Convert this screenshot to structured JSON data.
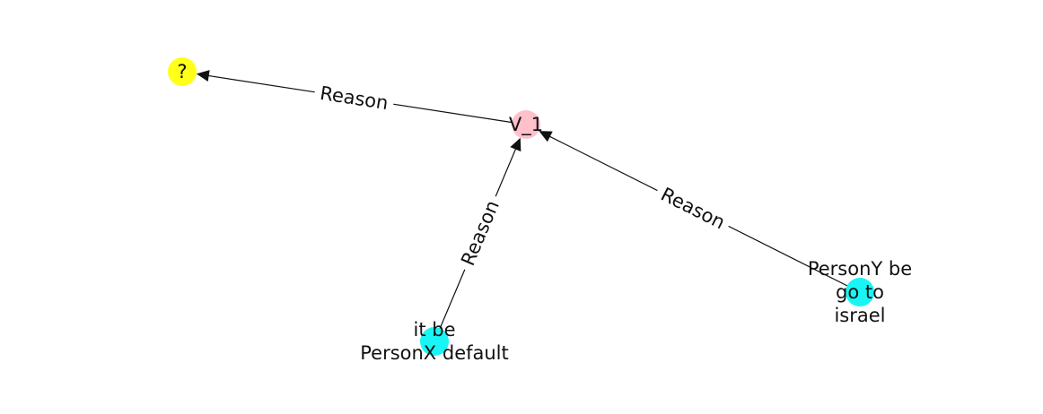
{
  "graph": {
    "nodes": [
      {
        "id": "q",
        "lines": [
          "?"
        ],
        "color": "#ffff1a"
      },
      {
        "id": "v1",
        "lines": [
          "V_1"
        ],
        "color": "#ffc0cb"
      },
      {
        "id": "x",
        "lines": [
          "it be",
          "PersonX default"
        ],
        "color": "#19f5f5"
      },
      {
        "id": "y",
        "lines": [
          "PersonY be",
          "go to",
          "israel"
        ],
        "color": "#19f5f5"
      }
    ],
    "edges": [
      {
        "id": "e1",
        "source": "v1",
        "target": "q",
        "label": "Reason"
      },
      {
        "id": "e2",
        "source": "x",
        "target": "v1",
        "label": "Reason"
      },
      {
        "id": "e3",
        "source": "y",
        "target": "v1",
        "label": "Reason"
      }
    ]
  }
}
